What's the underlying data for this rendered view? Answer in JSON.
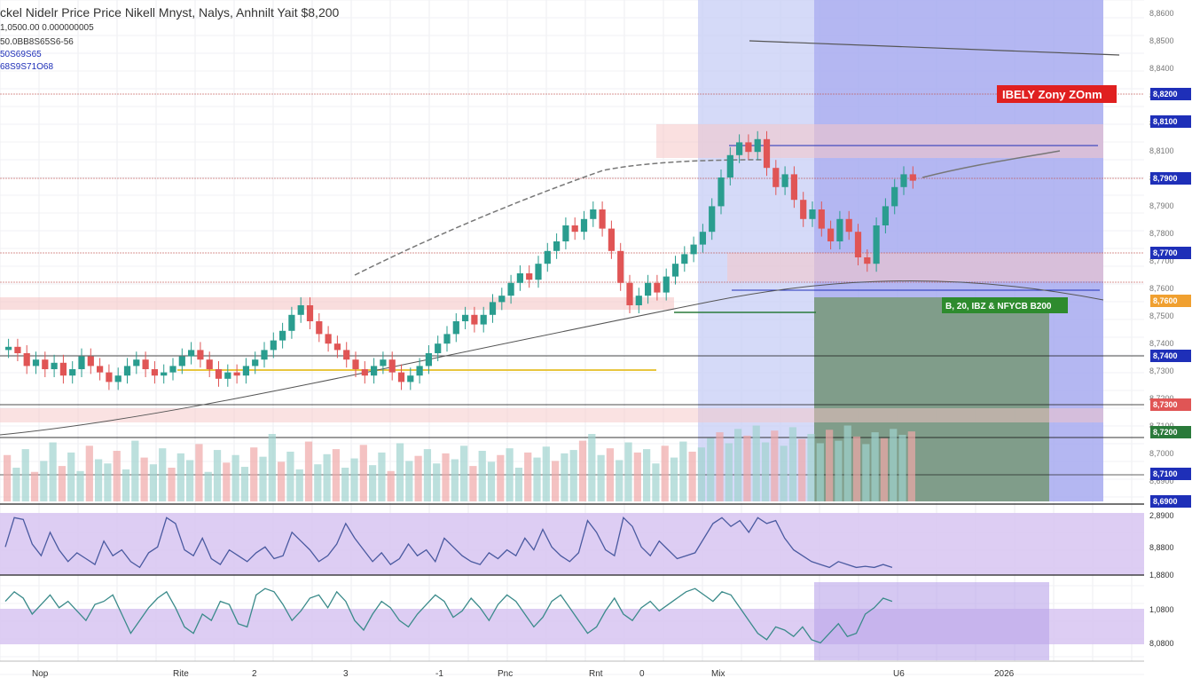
{
  "header": {
    "title": "ckel Nidelr Price Price Nikell Mnyst, Nalys, Anhnilt Yait $8,200",
    "line1": "1,0500.00 0.000000005",
    "line2": "50.0BB8S65S6-56",
    "line3": "50S69S65",
    "line4": "68S9S71O68"
  },
  "labels": {
    "zone_red": "IBELY Zony ZOnm",
    "zone_green": "B, 20, IBZ & NFYCB B200"
  },
  "colors": {
    "up": "#2a9d8f",
    "down": "#e05555",
    "shade_blue": "#c7cdf5",
    "shade_blue_dark": "#a7aaf0",
    "shade_green": "#7a9a7e",
    "band_red": "#f5c6c6",
    "osc": "#d9c8f2"
  },
  "chart_data": {
    "type": "candlestick",
    "panels": [
      "price",
      "volume",
      "oscillator_1",
      "oscillator_2"
    ],
    "y_axis_labels": [
      "8,8600",
      "8,8500",
      "8,8400",
      "8,8300",
      "8,8200",
      "8,8100",
      "8,8000",
      "8,7900",
      "8,7800",
      "8,7700",
      "8,7600",
      "8,7500",
      "8,7400",
      "8,7300",
      "8,7200",
      "8,7100",
      "8,7000",
      "8,6900"
    ],
    "price_tags": [
      {
        "text": "8,8200",
        "color": "#1e2fb8"
      },
      {
        "text": "8,8100",
        "color": "#1e2fb8"
      },
      {
        "text": "8,7900",
        "color": "#1e2fb8"
      },
      {
        "text": "8,7700",
        "color": "#1e2fb8"
      },
      {
        "text": "8,7600",
        "color": "#f0a030"
      },
      {
        "text": "8,7400",
        "color": "#1e2fb8"
      },
      {
        "text": "8,7300",
        "color": "#e05555"
      },
      {
        "text": "8,7200",
        "color": "#2a7a3a"
      },
      {
        "text": "8,7100",
        "color": "#1e2fb8"
      },
      {
        "text": "8,6900",
        "color": "#1e2fb8"
      }
    ],
    "osc_axis_labels": [
      "2,8900",
      "8,8800",
      "1,8800",
      "1,0800",
      "8,0800"
    ],
    "x_axis_labels": [
      "Nop",
      "Rite",
      "2",
      "3",
      "-1",
      "Pnc",
      "Rnt",
      "0",
      "Mix",
      "U6",
      "2026"
    ],
    "price_series": [
      8.42,
      8.4,
      8.36,
      8.38,
      8.35,
      8.37,
      8.33,
      8.35,
      8.39,
      8.36,
      8.34,
      8.31,
      8.33,
      8.36,
      8.38,
      8.35,
      8.33,
      8.34,
      8.36,
      8.39,
      8.41,
      8.38,
      8.35,
      8.32,
      8.34,
      8.33,
      8.36,
      8.38,
      8.41,
      8.44,
      8.47,
      8.52,
      8.55,
      8.5,
      8.46,
      8.43,
      8.41,
      8.38,
      8.35,
      8.33,
      8.36,
      8.38,
      8.34,
      8.31,
      8.33,
      8.36,
      8.4,
      8.43,
      8.46,
      8.5,
      8.52,
      8.49,
      8.52,
      8.56,
      8.58,
      8.62,
      8.65,
      8.63,
      8.68,
      8.72,
      8.75,
      8.8,
      8.78,
      8.82,
      8.85,
      8.79,
      8.72,
      8.62,
      8.55,
      8.58,
      8.62,
      8.59,
      8.64,
      8.68,
      8.71,
      8.74,
      8.78,
      8.86,
      8.95,
      9.02,
      9.06,
      9.03,
      9.07,
      8.98,
      8.92,
      8.96,
      8.88,
      8.82,
      8.85,
      8.79,
      8.75,
      8.82,
      8.78,
      8.7,
      8.68,
      8.8,
      8.86,
      8.92,
      8.96,
      8.94
    ],
    "volume_series": [
      0.55,
      0.4,
      0.62,
      0.35,
      0.48,
      0.7,
      0.42,
      0.58,
      0.36,
      0.66,
      0.5,
      0.45,
      0.6,
      0.38,
      0.72,
      0.52,
      0.44,
      0.63,
      0.4,
      0.57,
      0.49,
      0.68,
      0.35,
      0.61,
      0.46,
      0.55,
      0.41,
      0.64,
      0.53,
      0.8,
      0.47,
      0.59,
      0.38,
      0.71,
      0.44,
      0.56,
      0.62,
      0.4,
      0.51,
      0.67,
      0.43,
      0.58,
      0.36,
      0.69,
      0.48,
      0.54,
      0.62,
      0.45,
      0.57,
      0.5,
      0.66,
      0.42,
      0.6,
      0.47,
      0.55,
      0.63,
      0.4,
      0.58,
      0.52,
      0.65,
      0.48,
      0.57,
      0.61,
      0.72,
      0.8,
      0.55,
      0.63,
      0.49,
      0.7,
      0.58,
      0.62,
      0.45,
      0.66,
      0.52,
      0.71,
      0.59,
      0.64,
      0.75,
      0.82,
      0.69,
      0.86,
      0.78,
      0.9,
      0.7,
      0.84,
      0.66,
      0.88,
      0.74,
      0.8,
      0.69,
      0.85,
      0.72,
      0.9,
      0.77,
      0.68,
      0.82,
      0.75,
      0.86,
      0.79,
      0.83
    ],
    "oscillator_1": [
      0.45,
      0.95,
      0.92,
      0.5,
      0.3,
      0.7,
      0.4,
      0.2,
      0.35,
      0.25,
      0.15,
      0.55,
      0.3,
      0.4,
      0.2,
      0.1,
      0.35,
      0.45,
      0.95,
      0.85,
      0.4,
      0.3,
      0.6,
      0.25,
      0.15,
      0.4,
      0.3,
      0.2,
      0.35,
      0.45,
      0.25,
      0.3,
      0.7,
      0.55,
      0.4,
      0.2,
      0.3,
      0.5,
      0.85,
      0.6,
      0.4,
      0.2,
      0.35,
      0.15,
      0.25,
      0.5,
      0.3,
      0.4,
      0.2,
      0.6,
      0.45,
      0.3,
      0.2,
      0.15,
      0.35,
      0.25,
      0.4,
      0.3,
      0.6,
      0.4,
      0.75,
      0.45,
      0.3,
      0.2,
      0.35,
      0.9,
      0.7,
      0.4,
      0.3,
      0.95,
      0.8,
      0.45,
      0.3,
      0.55,
      0.4,
      0.25,
      0.3,
      0.35,
      0.6,
      0.85,
      0.95,
      0.8,
      0.9,
      0.7,
      0.95,
      0.85,
      0.9,
      0.6,
      0.4,
      0.3,
      0.2,
      0.15,
      0.1,
      0.2,
      0.15,
      0.1,
      0.12,
      0.1,
      0.15,
      0.1
    ],
    "oscillator_2": [
      0.7,
      0.85,
      0.75,
      0.5,
      0.65,
      0.8,
      0.6,
      0.7,
      0.55,
      0.4,
      0.65,
      0.7,
      0.8,
      0.5,
      0.2,
      0.4,
      0.6,
      0.75,
      0.85,
      0.6,
      0.3,
      0.2,
      0.5,
      0.4,
      0.7,
      0.65,
      0.35,
      0.3,
      0.8,
      0.9,
      0.85,
      0.65,
      0.4,
      0.55,
      0.75,
      0.8,
      0.6,
      0.85,
      0.7,
      0.4,
      0.25,
      0.5,
      0.7,
      0.6,
      0.4,
      0.3,
      0.5,
      0.65,
      0.8,
      0.7,
      0.45,
      0.55,
      0.75,
      0.6,
      0.4,
      0.65,
      0.8,
      0.7,
      0.5,
      0.3,
      0.45,
      0.7,
      0.8,
      0.6,
      0.4,
      0.2,
      0.3,
      0.55,
      0.75,
      0.5,
      0.4,
      0.6,
      0.7,
      0.55,
      0.65,
      0.75,
      0.85,
      0.9,
      0.8,
      0.7,
      0.85,
      0.8,
      0.6,
      0.4,
      0.2,
      0.1,
      0.3,
      0.25,
      0.15,
      0.3,
      0.1,
      0.05,
      0.2,
      0.35,
      0.15,
      0.2,
      0.5,
      0.6,
      0.75,
      0.7
    ]
  }
}
